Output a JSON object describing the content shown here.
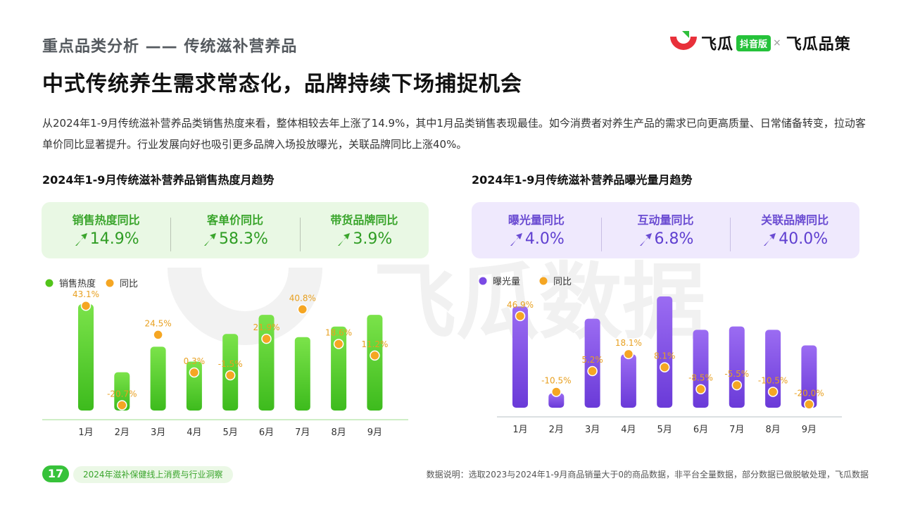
{
  "header": {
    "section": "重点品类分析 —— 传统滋补营养品",
    "title": "中式传统养生需求常态化，品牌持续下场捕捉机会",
    "intro": "从2024年1-9月传统滋补营养品类销售热度来看，整体相较去年上涨了14.9%，其中1月品类销售表现最佳。如今消费者对养生产品的需求已向更高质量、日常储备转变，拉动客单价同比显著提升。行业发展向好也吸引更多品牌入场投放曝光，关联品牌同比上涨40%。"
  },
  "logo": {
    "brand": "飞瓜",
    "badge": "抖音版",
    "separator": "×",
    "partner": "飞瓜品策"
  },
  "watermark": "飞瓜数据",
  "colors": {
    "green": "#52c41a",
    "purple": "#7a4ae4",
    "dot": "#f5a623",
    "dot_label": "#e8a020"
  },
  "kpis_left": [
    {
      "label": "销售热度同比",
      "value": "14.9%"
    },
    {
      "label": "客单价同比",
      "value": "58.3%"
    },
    {
      "label": "带货品牌同比",
      "value": "3.9%"
    }
  ],
  "kpis_right": [
    {
      "label": "曝光量同比",
      "value": "4.0%"
    },
    {
      "label": "互动量同比",
      "value": "6.8%"
    },
    {
      "label": "关联品牌同比",
      "value": "40.0%"
    }
  ],
  "chart_data": [
    {
      "type": "bar",
      "title": "2024年1-9月传统滋补营养品销售热度月趋势",
      "categories": [
        "1月",
        "2月",
        "3月",
        "4月",
        "5月",
        "6月",
        "7月",
        "8月",
        "9月"
      ],
      "series": [
        {
          "name": "销售热度",
          "values": [
            100,
            36,
            60,
            46,
            72,
            90,
            69,
            79,
            90
          ],
          "axis": "bars"
        },
        {
          "name": "同比",
          "values": [
            43.1,
            -20.7,
            24.5,
            0.3,
            -1.5,
            21.9,
            40.8,
            18.6,
            11.2
          ],
          "labels": [
            "43.1%",
            "-20.7%",
            "24.5%",
            "0.3%",
            "-1.5%",
            "21.9%",
            "40.8%",
            "18.6%",
            "11.2%"
          ],
          "axis": "dots"
        }
      ],
      "ylim_bars": [
        0,
        100
      ],
      "ylim_dots": [
        -25,
        45
      ],
      "legend": "top-left",
      "grid": false
    },
    {
      "type": "bar",
      "title": "2024年1-9月传统滋补营养品曝光量月趋势",
      "categories": [
        "1月",
        "2月",
        "3月",
        "4月",
        "5月",
        "6月",
        "7月",
        "8月",
        "9月"
      ],
      "series": [
        {
          "name": "曝光量",
          "values": [
            91,
            13,
            80,
            48,
            100,
            70,
            73,
            70,
            56
          ],
          "axis": "bars"
        },
        {
          "name": "同比",
          "values": [
            46.9,
            -10.5,
            5.2,
            18.1,
            8.1,
            -8.5,
            -5.5,
            -10.5,
            -20.0
          ],
          "labels": [
            "46.9%",
            "-10.5%",
            "5.2%",
            "18.1%",
            "8.1%",
            "-8.5%",
            "-5.5%",
            "-10.5%",
            "-20.0%"
          ],
          "axis": "dots"
        }
      ],
      "ylim_bars": [
        0,
        100
      ],
      "ylim_dots": [
        -22,
        50
      ],
      "legend": "top-left",
      "grid": false
    }
  ],
  "footer": {
    "page": "17",
    "report": "2024年滋补保健线上消费与行业洞察",
    "note": "数据说明：选取2023与2024年1-9月商品销量大于0的商品数据，非平台全量数据，部分数据已做脱敏处理，飞瓜数据"
  }
}
